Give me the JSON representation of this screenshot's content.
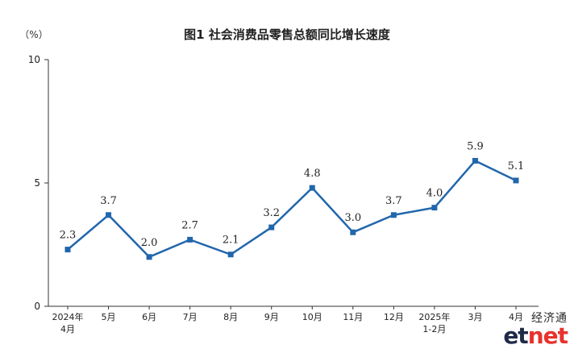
{
  "chart_data": {
    "type": "line",
    "title": "图1  社会消费品零售总额同比增长速度",
    "ylabel": "（%）",
    "xlabel": "",
    "ylim": [
      0,
      10
    ],
    "yticks": [
      "0",
      "5",
      "10"
    ],
    "grid": false,
    "categories": [
      [
        "2024年",
        "4月"
      ],
      [
        "5月"
      ],
      [
        "6月"
      ],
      [
        "7月"
      ],
      [
        "8月"
      ],
      [
        "9月"
      ],
      [
        "10月"
      ],
      [
        "11月"
      ],
      [
        "12月"
      ],
      [
        "2025年",
        "1-2月"
      ],
      [
        "3月"
      ],
      [
        "4月"
      ]
    ],
    "series": [
      {
        "values": [
          2.3,
          3.7,
          2.0,
          2.7,
          2.1,
          3.2,
          4.8,
          3.0,
          3.7,
          4.0,
          5.9,
          5.1
        ],
        "labels": [
          "2.3",
          "3.7",
          "2.0",
          "2.7",
          "2.1",
          "3.2",
          "4.8",
          "3.0",
          "3.7",
          "4.0",
          "5.9",
          "5.1"
        ]
      }
    ],
    "colors": {
      "line": "#2166ac",
      "axis": "#333333",
      "text": "#222222"
    }
  },
  "watermark": {
    "cn": "经济通",
    "en_main": "et",
    "en_accent": "net"
  }
}
